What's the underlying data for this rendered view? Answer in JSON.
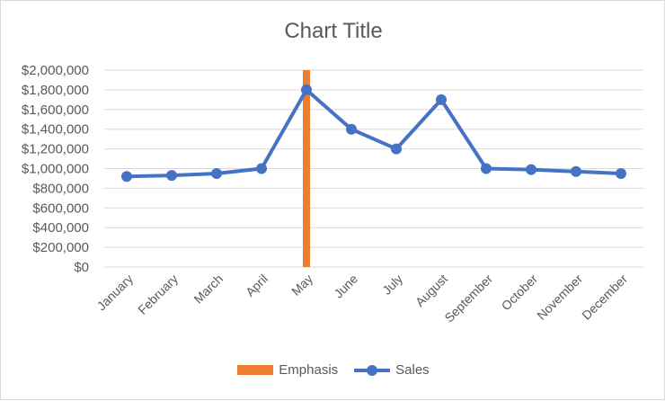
{
  "chart_data": {
    "type": "line",
    "title": "Chart Title",
    "categories": [
      "January",
      "February",
      "March",
      "April",
      "May",
      "June",
      "July",
      "August",
      "September",
      "October",
      "November",
      "December"
    ],
    "series": [
      {
        "name": "Emphasis",
        "type": "bar",
        "color": "#ed7d31",
        "values": [
          null,
          null,
          null,
          null,
          2000000,
          null,
          null,
          null,
          null,
          null,
          null,
          null
        ]
      },
      {
        "name": "Sales",
        "type": "line",
        "markers": true,
        "color": "#4472c4",
        "values": [
          920000,
          930000,
          950000,
          1000000,
          1800000,
          1400000,
          1200000,
          1700000,
          1000000,
          990000,
          970000,
          950000
        ]
      }
    ],
    "ylim": [
      0,
      2000000
    ],
    "yticks": [
      "$0",
      "$200,000",
      "$400,000",
      "$600,000",
      "$800,000",
      "$1,000,000",
      "$1,200,000",
      "$1,400,000",
      "$1,600,000",
      "$1,800,000",
      "$2,000,000"
    ],
    "grid": true,
    "legend": "bottom",
    "xlabel": "",
    "ylabel": ""
  }
}
